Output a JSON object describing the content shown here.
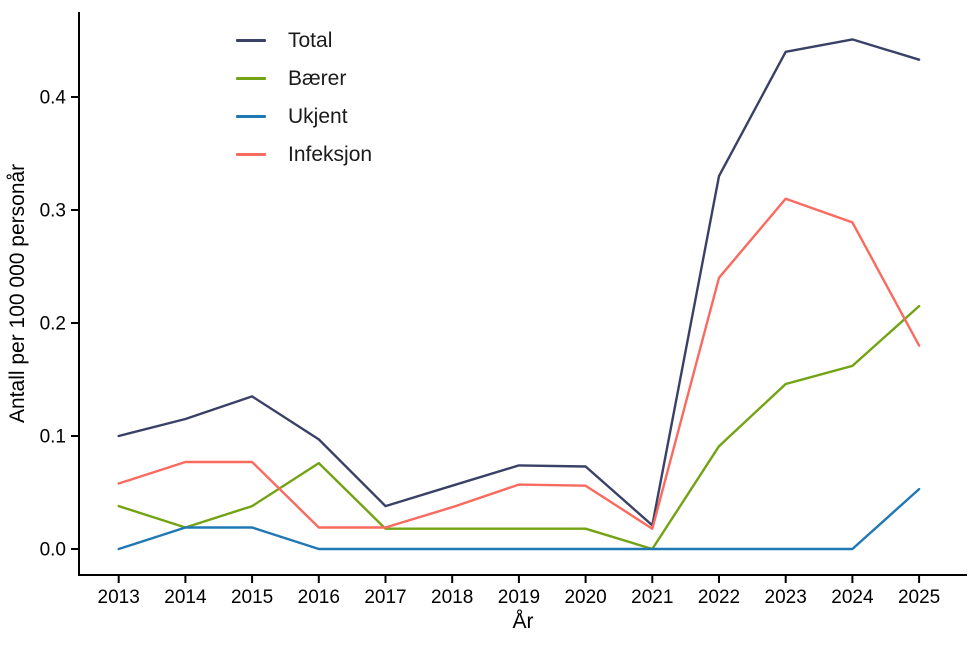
{
  "figure": {
    "background": "#ffffff",
    "axis_color": "#000000",
    "tick_label_color": "#000000",
    "tick_font_size": 19,
    "axis_title_font_size": 21
  },
  "chart_data": {
    "type": "line",
    "title": "",
    "xlabel": "År",
    "ylabel": "Antall per 100 000 personår",
    "x": [
      2013,
      2014,
      2015,
      2016,
      2017,
      2018,
      2019,
      2020,
      2021,
      2022,
      2023,
      2024,
      2025
    ],
    "xtick_labels": [
      "2013",
      "2014",
      "2015",
      "2016",
      "2017",
      "2018",
      "2019",
      "2020",
      "2021",
      "2022",
      "2023",
      "2024",
      "2025"
    ],
    "yticks": [
      0.0,
      0.1,
      0.2,
      0.3,
      0.4
    ],
    "ytick_labels": [
      "0.0",
      "0.1",
      "0.2",
      "0.3",
      "0.4"
    ],
    "ylim": [
      -0.023,
      0.475
    ],
    "grid": false,
    "legend_position": "inside-top-left",
    "series": [
      {
        "name": "Total",
        "color": "#3a4166",
        "values": [
          0.1,
          0.115,
          0.135,
          0.097,
          0.038,
          0.056,
          0.074,
          0.073,
          0.021,
          0.33,
          0.44,
          0.451,
          0.433
        ]
      },
      {
        "name": "Bærer",
        "color": "#72a313",
        "values": [
          0.038,
          0.019,
          0.038,
          0.076,
          0.018,
          0.018,
          0.018,
          0.018,
          0.0,
          0.091,
          0.146,
          0.162,
          0.215
        ]
      },
      {
        "name": "Ukjent",
        "color": "#1f78b4",
        "values": [
          0.0,
          0.019,
          0.019,
          0.0,
          0.0,
          0.0,
          0.0,
          0.0,
          0.0,
          0.0,
          0.0,
          0.0,
          0.053
        ]
      },
      {
        "name": "Infeksjon",
        "color": "#f96a5f",
        "values": [
          0.058,
          0.077,
          0.077,
          0.019,
          0.019,
          0.037,
          0.057,
          0.056,
          0.018,
          0.24,
          0.31,
          0.289,
          0.18
        ]
      }
    ]
  }
}
